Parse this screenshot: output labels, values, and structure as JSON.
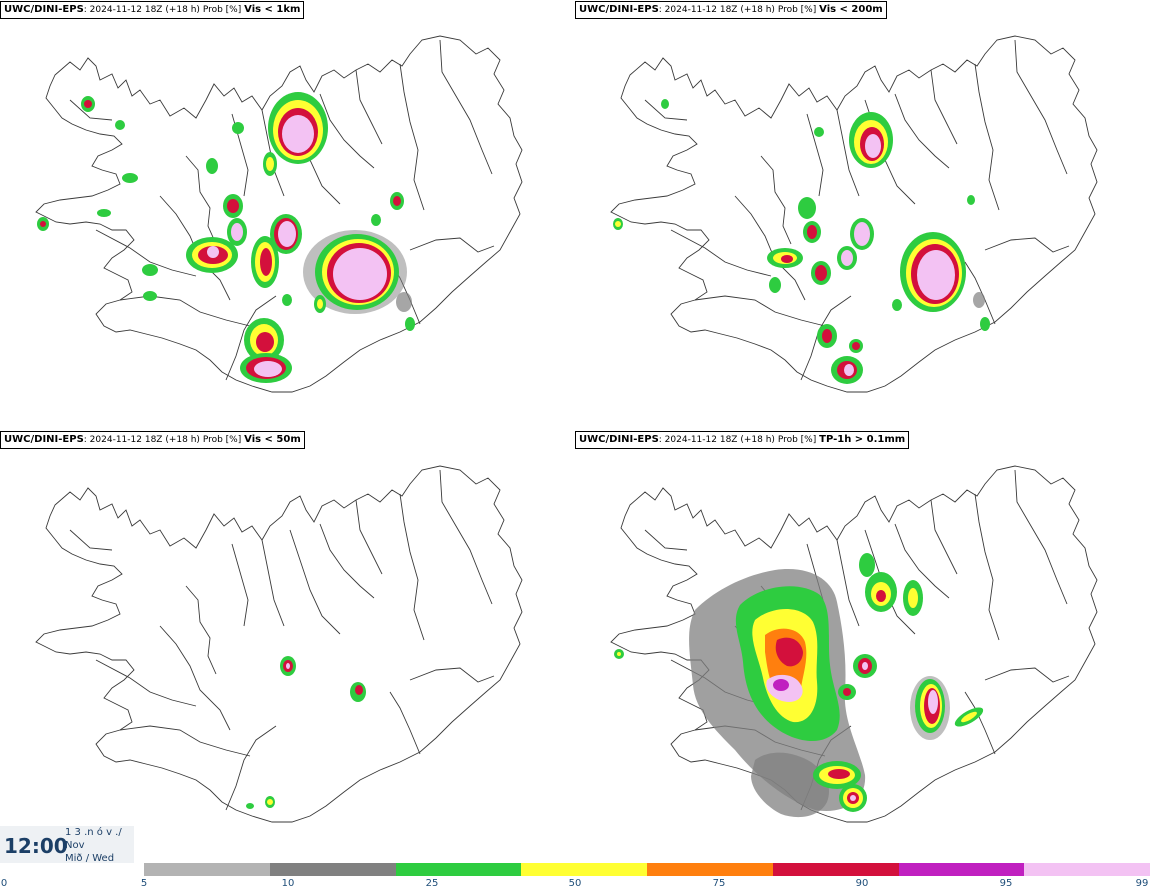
{
  "panels": [
    {
      "model": "UWC/DINI-EPS",
      "run": "2024-11-12 18Z",
      "lead": "(+18 h)",
      "prob": "Prob [%]",
      "variable": "Vis < 1km"
    },
    {
      "model": "UWC/DINI-EPS",
      "run": "2024-11-12 18Z",
      "lead": "(+18 h)",
      "prob": "Prob [%]",
      "variable": "Vis < 200m"
    },
    {
      "model": "UWC/DINI-EPS",
      "run": "2024-11-12 18Z",
      "lead": "(+18 h)",
      "prob": "Prob [%]",
      "variable": "Vis < 50m"
    },
    {
      "model": "UWC/DINI-EPS",
      "run": "2024-11-12 18Z",
      "lead": "(+18 h)",
      "prob": "Prob [%]",
      "variable": "TP-1h > 0.1mm"
    }
  ],
  "valid_time": {
    "time": "12:00",
    "day_line": "1 3 .n ó v ./",
    "month": "Nov",
    "weekday": "Mið / Wed"
  },
  "legend": {
    "colors": [
      "#b3b3b3",
      "#808080",
      "#2ecc40",
      "#ffff33",
      "#ff7f0e",
      "#d3103c",
      "#c020c0",
      "#f3c2f3"
    ],
    "ticks": [
      "0",
      "5",
      "10",
      "25",
      "50",
      "75",
      "90",
      "95",
      "99"
    ]
  }
}
